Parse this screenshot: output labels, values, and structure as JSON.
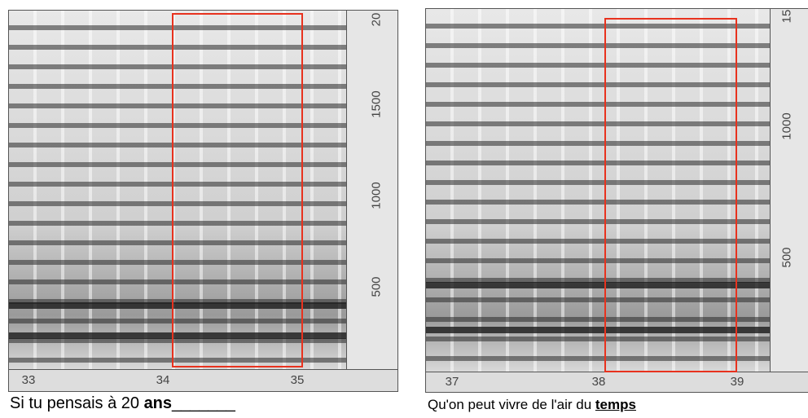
{
  "panels": [
    {
      "x_labels": [
        "33",
        "34",
        "35"
      ],
      "y_labels": [
        "500",
        "1000",
        "1500",
        "20"
      ],
      "caption": {
        "text": "Si tu pensais à 20 ",
        "emphasis": "ans",
        "trail": "_______"
      }
    },
    {
      "x_labels": [
        "37",
        "38",
        "39"
      ],
      "y_labels": [
        "500",
        "1000",
        "15"
      ],
      "caption": {
        "text": "Qu'on peut vivre de l'air du ",
        "emphasis": "temps"
      }
    }
  ]
}
